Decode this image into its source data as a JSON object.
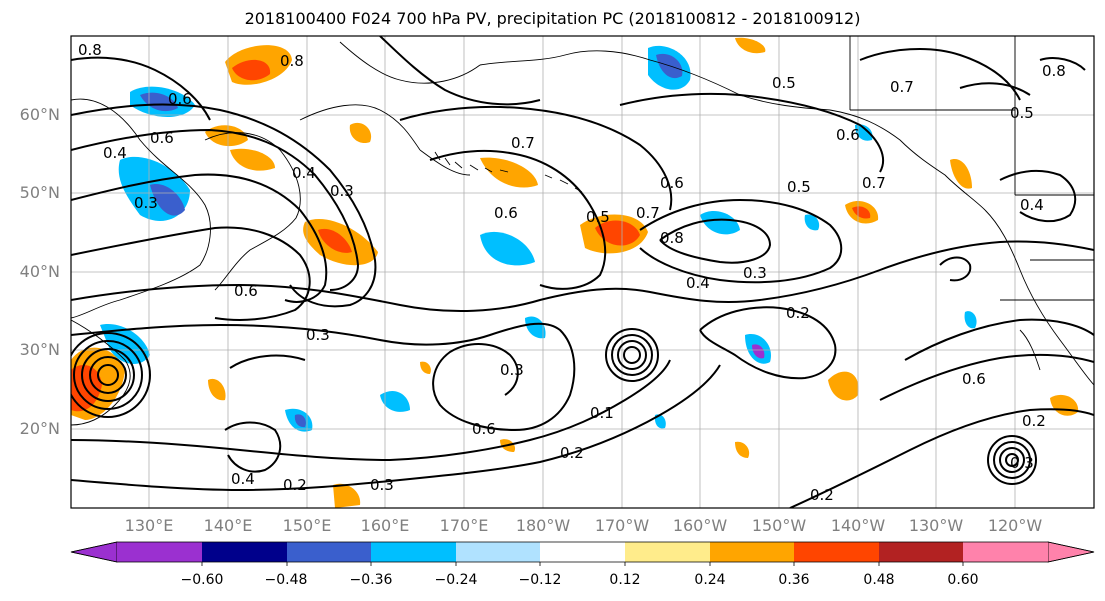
{
  "title": "2018100400 F024 700 hPa PV, precipitation PC (2018100812 - 2018100912)",
  "lat_labels": [
    "60°N",
    "50°N",
    "40°N",
    "30°N",
    "20°N"
  ],
  "lon_labels": [
    "130°E",
    "140°E",
    "150°E",
    "160°E",
    "170°E",
    "180°W",
    "170°W",
    "160°W",
    "150°W",
    "140°W",
    "130°W",
    "120°W"
  ],
  "colorbar": {
    "ticks": [
      "−0.60",
      "−0.48",
      "−0.36",
      "−0.24",
      "−0.12",
      "0.12",
      "0.24",
      "0.36",
      "0.48",
      "0.60"
    ],
    "colors": [
      "#9b30d0",
      "#00008b",
      "#3a5fcd",
      "#00bfff",
      "#b0e2ff",
      "#ffffff",
      "#ffec8b",
      "#ffa500",
      "#ff4500",
      "#b22222",
      "#ff82ab"
    ]
  },
  "contour_labels": [
    "0.8",
    "0.8",
    "0.6",
    "0.6",
    "0.4",
    "0.3",
    "0.4",
    "0.3",
    "0.7",
    "0.6",
    "0.5",
    "0.7",
    "0.8",
    "0.6",
    "0.4",
    "0.3",
    "0.3",
    "0.3",
    "0.6",
    "0.2",
    "0.1",
    "0.2",
    "0.2",
    "0.4",
    "0.3",
    "0.2",
    "0.6",
    "0.7",
    "0.5",
    "0.6",
    "0.8",
    "0.5",
    "0.7",
    "0.2",
    "0.3",
    "0.6",
    "0.5",
    "0.4"
  ]
}
